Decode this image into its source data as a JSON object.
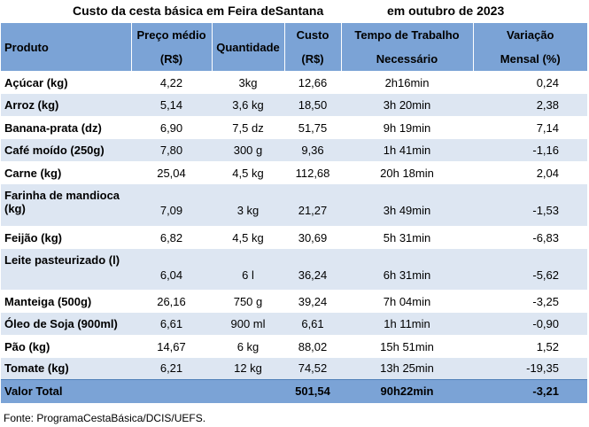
{
  "title": {
    "part1": "Custo da cesta básica em Feira deSantana",
    "part2": "em outubro de 2023"
  },
  "headers": [
    {
      "line1": "Produto",
      "line2": ""
    },
    {
      "line1": "Preço médio",
      "line2": "(R$)"
    },
    {
      "line1": "Quantidade",
      "line2": ""
    },
    {
      "line1": "Custo",
      "line2": "(R$)"
    },
    {
      "line1": "Tempo de Trabalho",
      "line2": "Necessário"
    },
    {
      "line1": "Variação",
      "line2": "Mensal (%)"
    }
  ],
  "rows": [
    {
      "produto": "Açúcar (kg)",
      "preco": "4,22",
      "quantidade": "3kg",
      "custo": "12,66",
      "tempo": "2h16min",
      "variacao": "0,24"
    },
    {
      "produto": "Arroz (kg)",
      "preco": "5,14",
      "quantidade": "3,6 kg",
      "custo": "18,50",
      "tempo": "3h 20min",
      "variacao": "2,38"
    },
    {
      "produto": "Banana-prata (dz)",
      "preco": "6,90",
      "quantidade": "7,5 dz",
      "custo": "51,75",
      "tempo": "9h 19min",
      "variacao": "7,14"
    },
    {
      "produto": "Café moído (250g)",
      "preco": "7,80",
      "quantidade": "300 g",
      "custo": "9,36",
      "tempo": "1h 41min",
      "variacao": "-1,16"
    },
    {
      "produto": "Carne (kg)",
      "preco": "25,04",
      "quantidade": "4,5 kg",
      "custo": "112,68",
      "tempo": "20h 18min",
      "variacao": "2,04"
    },
    {
      "produto": "Farinha de mandioca (kg)",
      "preco": "7,09",
      "quantidade": "3 kg",
      "custo": "21,27",
      "tempo": "3h 49min",
      "variacao": "-1,53"
    },
    {
      "produto": "Feijão (kg)",
      "preco": "6,82",
      "quantidade": "4,5 kg",
      "custo": "30,69",
      "tempo": "5h 31min",
      "variacao": "-6,83"
    },
    {
      "produto": "Leite pasteurizado (l)",
      "preco": "6,04",
      "quantidade": "6 l",
      "custo": "36,24",
      "tempo": "6h 31min",
      "variacao": "-5,62"
    },
    {
      "produto": "Manteiga (500g)",
      "preco": "26,16",
      "quantidade": "750 g",
      "custo": "39,24",
      "tempo": "7h 04min",
      "variacao": "-3,25"
    },
    {
      "produto": "Óleo de Soja (900ml)",
      "preco": "6,61",
      "quantidade": "900 ml",
      "custo": "6,61",
      "tempo": "1h 11min",
      "variacao": "-0,90"
    },
    {
      "produto": "Pão (kg)",
      "preco": "14,67",
      "quantidade": "6 kg",
      "custo": "88,02",
      "tempo": "15h 51min",
      "variacao": "1,52"
    },
    {
      "produto": "Tomate (kg)",
      "preco": "6,21",
      "quantidade": "12 kg",
      "custo": "74,52",
      "tempo": "13h 25min",
      "variacao": "-19,35"
    }
  ],
  "total": {
    "label": "Valor Total",
    "custo": "501,54",
    "tempo": "90h22min",
    "variacao": "-3,21"
  },
  "footer": "Fonte: ProgramaCestaBásica/DCIS/UEFS.",
  "colors": {
    "header_bg": "#7ba3d6",
    "stripe_bg": "#dde6f2"
  }
}
